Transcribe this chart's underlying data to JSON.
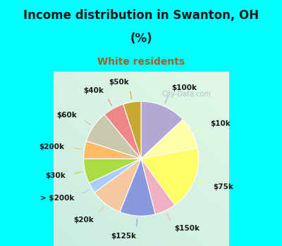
{
  "title_line1": "Income distribution in Swanton, OH",
  "title_line2": "(%)",
  "subtitle": "White residents",
  "title_color": "#1a1a1a",
  "subtitle_color": "#b05a20",
  "background_top": "#00ffff",
  "background_chart": "#d8f0e8",
  "labels": [
    "$100k",
    "$10k",
    "$75k",
    "$150k",
    "$125k",
    "$20k",
    "> $200k",
    "$30k",
    "$200k",
    "$60k",
    "$40k",
    "$50k"
  ],
  "values": [
    13,
    9,
    18,
    6,
    10,
    9,
    3,
    7,
    5,
    9,
    6,
    5
  ],
  "colors": [
    "#b3a8d4",
    "#ffffaa",
    "#ffff66",
    "#f0b0c0",
    "#8899dd",
    "#f5c8a0",
    "#aaccff",
    "#aadd44",
    "#ffbb66",
    "#c8c8aa",
    "#ee8888",
    "#c8a830"
  ],
  "label_color": "#1a1a1a",
  "label_fontsize": 7.5,
  "watermark": "City-Data.com"
}
